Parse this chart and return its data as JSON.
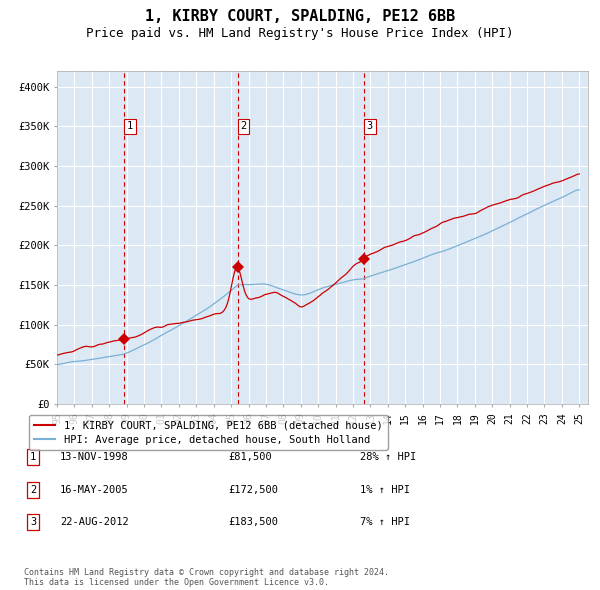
{
  "title": "1, KIRBY COURT, SPALDING, PE12 6BB",
  "subtitle": "Price paid vs. HM Land Registry's House Price Index (HPI)",
  "title_fontsize": 11,
  "subtitle_fontsize": 9,
  "ylim": [
    0,
    420000
  ],
  "yticks": [
    0,
    50000,
    100000,
    150000,
    200000,
    250000,
    300000,
    350000,
    400000
  ],
  "ytick_labels": [
    "£0",
    "£50K",
    "£100K",
    "£150K",
    "£200K",
    "£250K",
    "£300K",
    "£350K",
    "£400K"
  ],
  "background_color": "#dce9f5",
  "grid_color": "#ffffff",
  "red_line_color": "#cc0000",
  "blue_line_color": "#7ab0d4",
  "marker_color": "#cc0000",
  "dashed_line_color": "#cc0000",
  "sale_dates": [
    1998.87,
    2005.37,
    2012.64
  ],
  "sale_prices": [
    81500,
    172500,
    183500
  ],
  "sale_labels": [
    "1",
    "2",
    "3"
  ],
  "legend_entries": [
    "1, KIRBY COURT, SPALDING, PE12 6BB (detached house)",
    "HPI: Average price, detached house, South Holland"
  ],
  "table_rows": [
    {
      "num": "1",
      "date": "13-NOV-1998",
      "price": "£81,500",
      "hpi": "28% ↑ HPI"
    },
    {
      "num": "2",
      "date": "16-MAY-2005",
      "price": "£172,500",
      "hpi": "1% ↑ HPI"
    },
    {
      "num": "3",
      "date": "22-AUG-2012",
      "price": "£183,500",
      "hpi": "7% ↑ HPI"
    }
  ],
  "footnote": "Contains HM Land Registry data © Crown copyright and database right 2024.\nThis data is licensed under the Open Government Licence v3.0."
}
